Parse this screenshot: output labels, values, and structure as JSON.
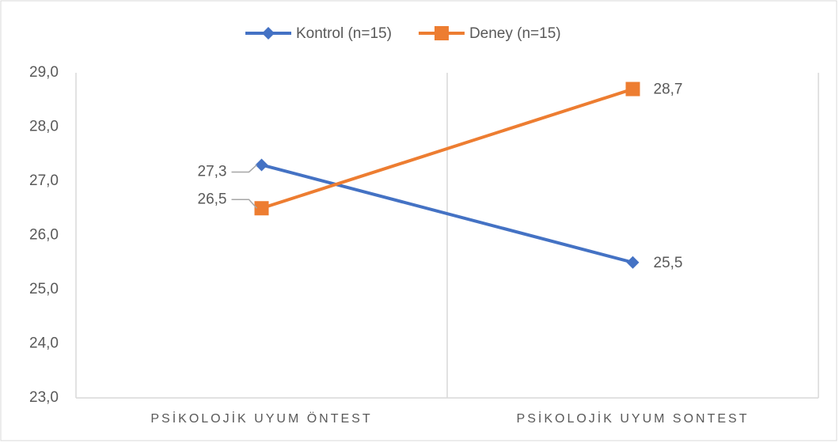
{
  "chart_data": {
    "type": "line",
    "categories": [
      "PSİKOLOJİK UYUM ÖNTEST",
      "PSİKOLOJİK UYUM SONTEST"
    ],
    "series": [
      {
        "name": "Kontrol (n=15)",
        "color": "#4472c4",
        "marker": "diamond",
        "values": [
          27.3,
          25.5
        ],
        "value_labels": [
          "27,3",
          "25,5"
        ]
      },
      {
        "name": "Deney (n=15)",
        "color": "#ed7d31",
        "marker": "square",
        "values": [
          26.5,
          28.7
        ],
        "value_labels": [
          "26,5",
          "28,7"
        ]
      }
    ],
    "ylim": [
      23,
      29
    ],
    "yticks": [
      {
        "value": 23,
        "label": "23,0"
      },
      {
        "value": 24,
        "label": "24,0"
      },
      {
        "value": 25,
        "label": "25,0"
      },
      {
        "value": 26,
        "label": "26,0"
      },
      {
        "value": 27,
        "label": "27,0"
      },
      {
        "value": 28,
        "label": "28,0"
      },
      {
        "value": 29,
        "label": "29,0"
      }
    ],
    "legend": "top"
  }
}
